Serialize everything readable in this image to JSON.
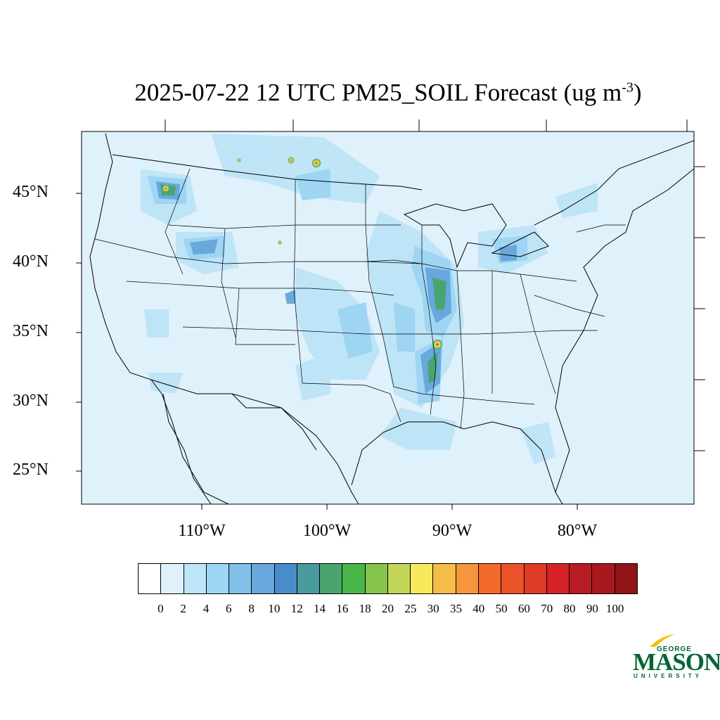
{
  "title": {
    "main": "2025-07-22 12 UTC PM25_SOIL Forecast (ug m",
    "superscript": "-3",
    "close": ")"
  },
  "map": {
    "background_color": "#dff1fb",
    "latitude_labels": [
      "45°N",
      "40°N",
      "35°N",
      "30°N",
      "25°N"
    ],
    "longitude_labels": [
      "110°W",
      "100°W",
      "90°W",
      "80°W"
    ]
  },
  "colorbar": {
    "labels": [
      "0",
      "2",
      "4",
      "6",
      "8",
      "10",
      "12",
      "14",
      "16",
      "18",
      "20",
      "25",
      "30",
      "35",
      "40",
      "50",
      "60",
      "70",
      "80",
      "90",
      "100"
    ],
    "colors": [
      "#ffffff",
      "#dff1fb",
      "#bde4f7",
      "#9dd5f3",
      "#80bfe8",
      "#68a8dc",
      "#4a8cca",
      "#4a9ba0",
      "#4aa470",
      "#4ab548",
      "#86c44c",
      "#c3d65a",
      "#f7e85c",
      "#f6bc48",
      "#f5963e",
      "#f26a2c",
      "#ea5229",
      "#df3a25",
      "#d42228",
      "#b81c24",
      "#a8191f",
      "#901418"
    ]
  },
  "logo": {
    "line1": "GEORGE",
    "line2": "MASON",
    "line3": "UNIVERSITY",
    "color": "#006633",
    "accent": "#f2c300"
  }
}
